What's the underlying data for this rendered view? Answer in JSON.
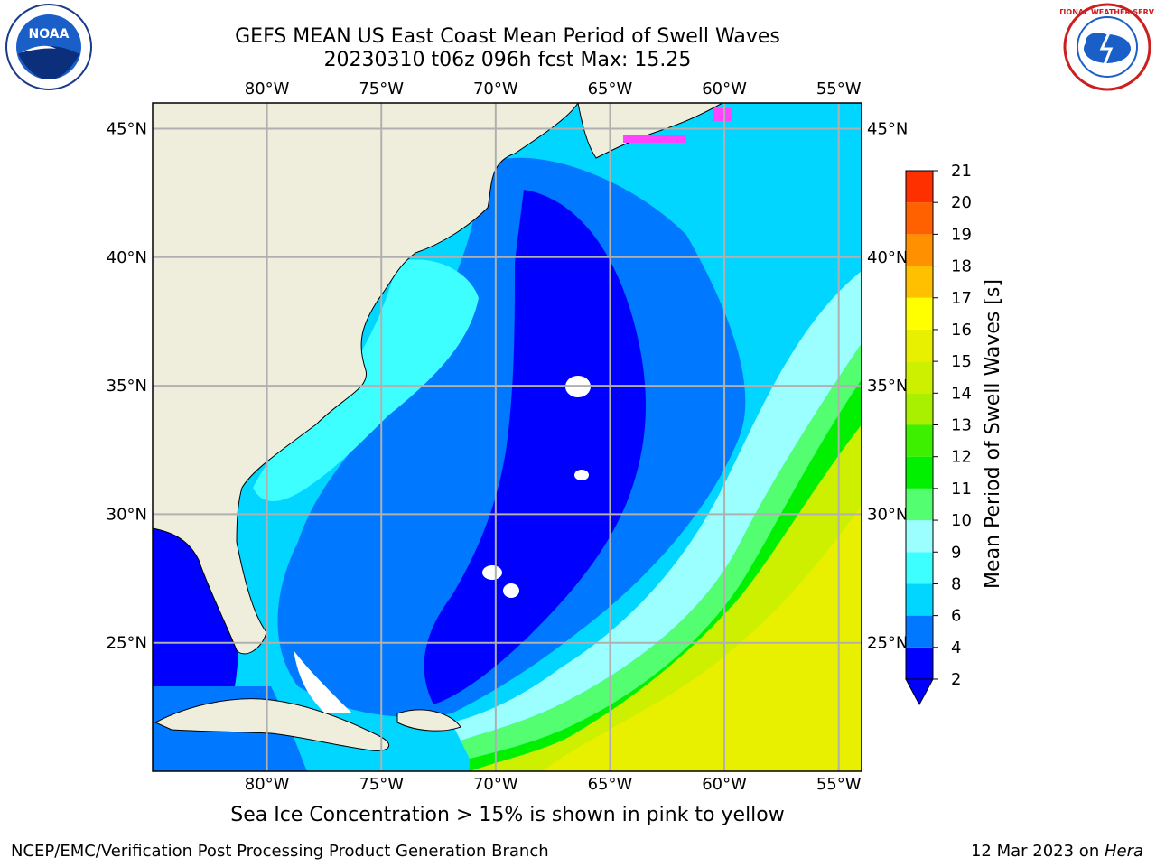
{
  "title_line1": "GEFS MEAN US East Coast Mean Period of Swell Waves",
  "title_line2": "20230310 t06z 096h fcst   Max: 15.25",
  "map": {
    "lon_range": [
      -85,
      -54
    ],
    "lat_range": [
      20,
      46
    ],
    "lon_ticks": [
      {
        "lon": -80,
        "label": "80°W"
      },
      {
        "lon": -75,
        "label": "75°W"
      },
      {
        "lon": -70,
        "label": "70°W"
      },
      {
        "lon": -65,
        "label": "65°W"
      },
      {
        "lon": -60,
        "label": "60°W"
      },
      {
        "lon": -55,
        "label": "55°W"
      }
    ],
    "lat_ticks": [
      {
        "lat": 45,
        "label": "45°N"
      },
      {
        "lat": 40,
        "label": "40°N"
      },
      {
        "lat": 35,
        "label": "35°N"
      },
      {
        "lat": 30,
        "label": "30°N"
      },
      {
        "lat": 25,
        "label": "25°N"
      }
    ],
    "gridlines": true,
    "land_color": "#efeedd"
  },
  "colorbar": {
    "label": "Mean Period of Swell Waves [s]",
    "levels": [
      2,
      4,
      6,
      8,
      9,
      10,
      11,
      12,
      13,
      14,
      15,
      16,
      17,
      18,
      19,
      20,
      21
    ],
    "colors": [
      "#0000ff",
      "#0078ff",
      "#00d6ff",
      "#3dffff",
      "#9cffff",
      "#53ff71",
      "#00f000",
      "#3cf000",
      "#a8f000",
      "#ccf000",
      "#e8f000",
      "#ffff00",
      "#ffc000",
      "#ff9000",
      "#ff6000",
      "#ff3000",
      "#ff0000"
    ],
    "extend_min_color": "#0000ff"
  },
  "note": "Sea Ice Concentration > 15% is shown in pink to yellow",
  "footer_left": "NCEP/EMC/Verification Post Processing Product Generation Branch",
  "footer_right_date": "12 Mar 2023 on ",
  "footer_right_machine": "Hera",
  "logos": {
    "noaa_text": "NOAA",
    "nws_text": "NATIONAL WEATHER SERVICE"
  }
}
